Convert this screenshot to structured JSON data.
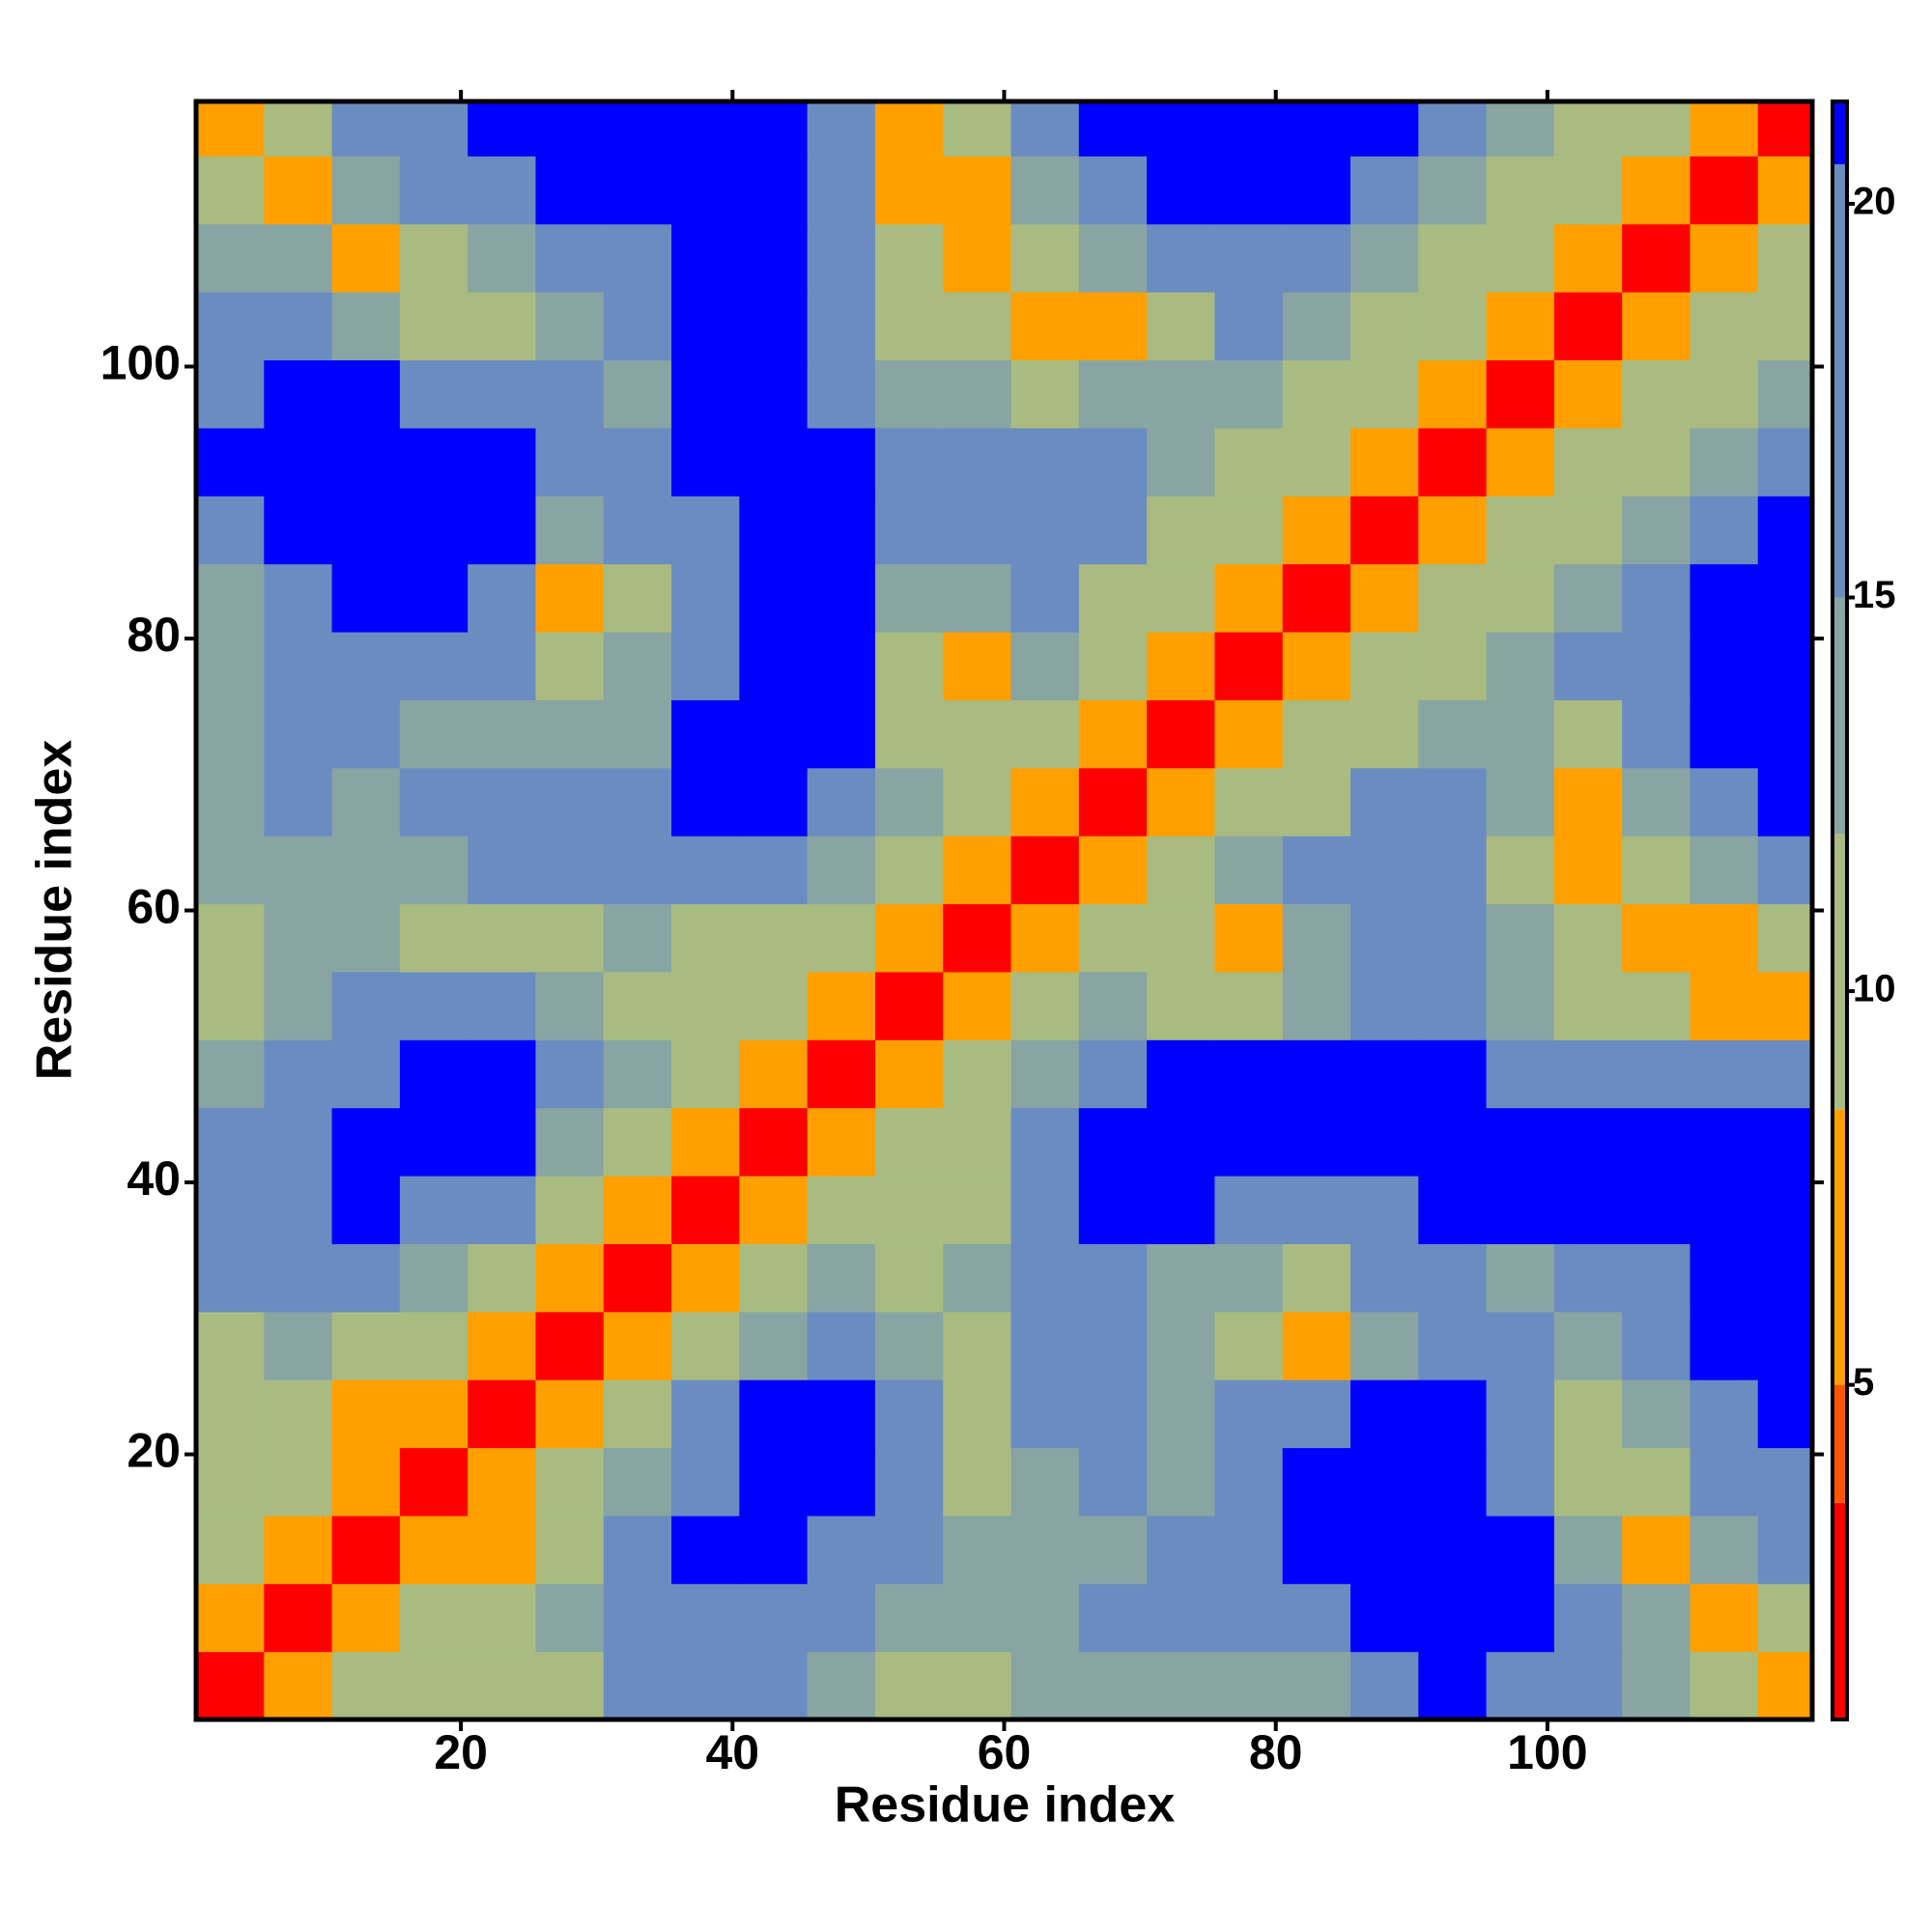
{
  "chart_data": {
    "type": "heatmap",
    "x_label": "Residue index",
    "y_label": "Residue index",
    "x": [
      3,
      8,
      13,
      18,
      23,
      28,
      33,
      38,
      43,
      48,
      53,
      58,
      63,
      68,
      73,
      78,
      83,
      88,
      93,
      98,
      103,
      108,
      113,
      118
    ],
    "y": [
      3,
      8,
      13,
      18,
      23,
      28,
      33,
      38,
      43,
      48,
      53,
      58,
      63,
      68,
      73,
      78,
      83,
      88,
      93,
      98,
      103,
      108,
      113,
      118
    ],
    "cell_size": 5,
    "xlim": [
      0.5,
      119.5
    ],
    "ylim": [
      0.5,
      119.5
    ],
    "xticks": [
      20,
      40,
      60,
      80,
      100
    ],
    "yticks": [
      20,
      40,
      60,
      80,
      100
    ],
    "z": [
      [
        2,
        7,
        10,
        12,
        9,
        12,
        16,
        16,
        17,
        14,
        12,
        12,
        14,
        15,
        14,
        15,
        14,
        19,
        21,
        18,
        17,
        14,
        10,
        7
      ],
      [
        7,
        2,
        7,
        9,
        11,
        14,
        18,
        20,
        20,
        17,
        14,
        13,
        15,
        17,
        16,
        18,
        20,
        21,
        21,
        21,
        17,
        13,
        7,
        12
      ],
      [
        10,
        7,
        2,
        7,
        8,
        12,
        17,
        21,
        21,
        20,
        16,
        13,
        15,
        15,
        16,
        19,
        21,
        21,
        21,
        21,
        15,
        8,
        13,
        16
      ],
      [
        12,
        9,
        7,
        2,
        6,
        9,
        14,
        20,
        21,
        21,
        17,
        12,
        14,
        16,
        15,
        19,
        21,
        21,
        21,
        20,
        12,
        11,
        16,
        19
      ],
      [
        9,
        11,
        8,
        6,
        2,
        6,
        10,
        16,
        21,
        21,
        17,
        11,
        16,
        19,
        15,
        17,
        18,
        21,
        21,
        17,
        11,
        14,
        19,
        21
      ],
      [
        12,
        14,
        12,
        9,
        6,
        2,
        6,
        10,
        15,
        18,
        14,
        12,
        18,
        17,
        14,
        11,
        8,
        14,
        19,
        16,
        14,
        17,
        21,
        21
      ],
      [
        16,
        18,
        17,
        14,
        10,
        6,
        2,
        6,
        10,
        13,
        12,
        13,
        20,
        18,
        15,
        13,
        12,
        17,
        18,
        15,
        16,
        20,
        21,
        21
      ],
      [
        16,
        20,
        21,
        20,
        16,
        10,
        6,
        2,
        6,
        10,
        11,
        12,
        20,
        21,
        21,
        19,
        18,
        20,
        21,
        21,
        21,
        21,
        21,
        21
      ],
      [
        17,
        20,
        21,
        21,
        21,
        15,
        10,
        6,
        2,
        7,
        9,
        12,
        18,
        21,
        21,
        21,
        21,
        21,
        21,
        21,
        21,
        21,
        21,
        21
      ],
      [
        14,
        17,
        20,
        21,
        21,
        18,
        13,
        10,
        7,
        2,
        7,
        10,
        14,
        19,
        21,
        21,
        21,
        21,
        21,
        20,
        18,
        19,
        20,
        19
      ],
      [
        12,
        14,
        16,
        17,
        17,
        14,
        12,
        11,
        9,
        7,
        2,
        6,
        10,
        13,
        11,
        9,
        13,
        18,
        19,
        14,
        11,
        9,
        7,
        6
      ],
      [
        12,
        13,
        13,
        12,
        11,
        12,
        13,
        12,
        12,
        10,
        6,
        2,
        6,
        10,
        10,
        8,
        13,
        17,
        18,
        13,
        9,
        7,
        7,
        11
      ],
      [
        14,
        15,
        15,
        14,
        16,
        18,
        20,
        20,
        18,
        14,
        10,
        6,
        2,
        6,
        9,
        13,
        17,
        20,
        20,
        12,
        8,
        11,
        14,
        17
      ],
      [
        15,
        17,
        15,
        16,
        19,
        17,
        18,
        21,
        21,
        19,
        13,
        10,
        6,
        2,
        6,
        9,
        12,
        16,
        19,
        13,
        7,
        13,
        17,
        21
      ],
      [
        14,
        16,
        16,
        15,
        15,
        14,
        15,
        21,
        21,
        21,
        11,
        10,
        9,
        6,
        2,
        6,
        9,
        11,
        14,
        15,
        12,
        18,
        21,
        21
      ],
      [
        15,
        18,
        19,
        19,
        17,
        11,
        13,
        19,
        21,
        21,
        9,
        8,
        13,
        9,
        6,
        2,
        6,
        9,
        12,
        14,
        16,
        20,
        21,
        21
      ],
      [
        14,
        20,
        21,
        21,
        18,
        8,
        12,
        18,
        21,
        21,
        13,
        13,
        17,
        12,
        9,
        6,
        2,
        6,
        10,
        12,
        15,
        19,
        21,
        21
      ],
      [
        19,
        21,
        21,
        21,
        21,
        14,
        17,
        20,
        21,
        21,
        18,
        17,
        20,
        16,
        11,
        9,
        6,
        2,
        6,
        9,
        12,
        15,
        19,
        21
      ],
      [
        21,
        21,
        21,
        21,
        21,
        19,
        18,
        21,
        21,
        21,
        19,
        18,
        20,
        19,
        14,
        12,
        10,
        6,
        2,
        6,
        9,
        12,
        15,
        18
      ],
      [
        18,
        21,
        21,
        20,
        17,
        16,
        15,
        21,
        21,
        20,
        14,
        13,
        12,
        13,
        15,
        14,
        12,
        9,
        6,
        2,
        6,
        9,
        12,
        15
      ],
      [
        17,
        17,
        15,
        12,
        11,
        14,
        16,
        21,
        21,
        18,
        11,
        9,
        8,
        7,
        12,
        16,
        15,
        12,
        9,
        6,
        2,
        6,
        9,
        12
      ],
      [
        14,
        13,
        8,
        11,
        14,
        17,
        20,
        21,
        21,
        19,
        9,
        7,
        11,
        13,
        18,
        20,
        19,
        15,
        12,
        9,
        6,
        2,
        6,
        9
      ],
      [
        10,
        7,
        13,
        16,
        19,
        21,
        21,
        21,
        21,
        20,
        7,
        7,
        14,
        17,
        21,
        21,
        21,
        19,
        15,
        12,
        9,
        6,
        2,
        6
      ],
      [
        7,
        12,
        16,
        19,
        21,
        21,
        21,
        21,
        21,
        19,
        6,
        11,
        17,
        21,
        21,
        21,
        21,
        21,
        18,
        15,
        12,
        9,
        6,
        2
      ]
    ],
    "colorbar": {
      "lim": [
        0.75,
        21.3
      ],
      "ticks": [
        5,
        10,
        15,
        20
      ],
      "edges": [
        0.75,
        3.5,
        5,
        8.5,
        12,
        15,
        20.5,
        21.3
      ],
      "colors": [
        "#ff0000",
        "#ff5500",
        "#ffa000",
        "#a9bb80",
        "#88a5a3",
        "#6b8cc0",
        "#0000ff"
      ]
    }
  }
}
